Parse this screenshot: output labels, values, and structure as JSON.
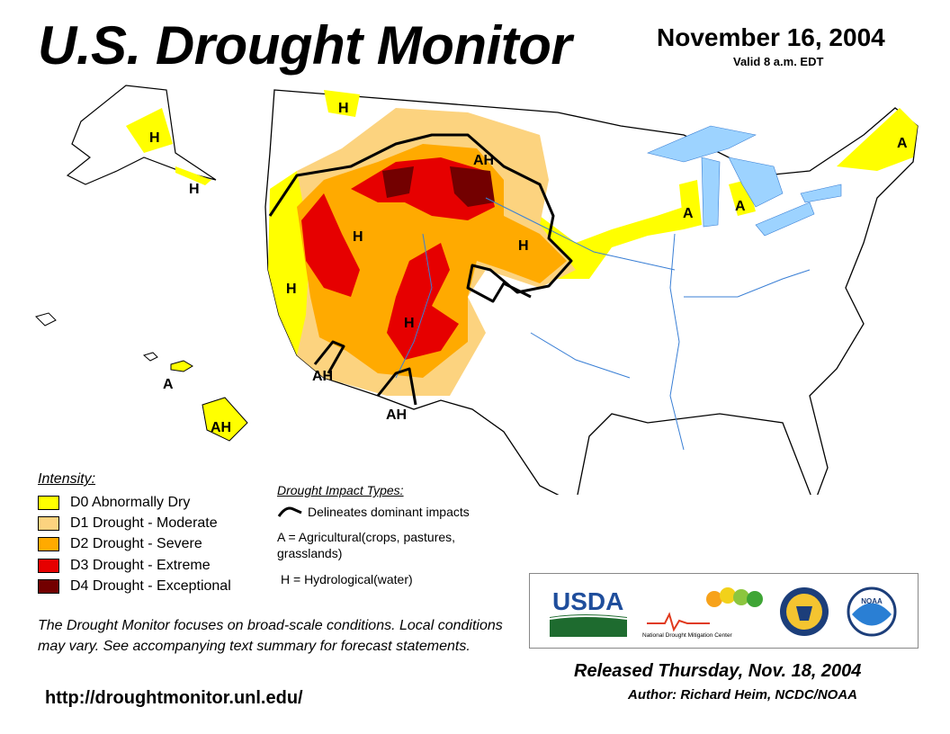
{
  "header": {
    "title": "U.S. Drought Monitor",
    "date": "November 16, 2004",
    "valid": "Valid 8 a.m. EDT"
  },
  "colors": {
    "d0": "#ffff00",
    "d1": "#fcd37f",
    "d2": "#ffaa00",
    "d3": "#e60000",
    "d4": "#730000",
    "water": "#9dd3ff",
    "river": "#3a7fd5",
    "boundary": "#000000"
  },
  "legend": {
    "title": "Intensity:",
    "items": [
      {
        "code": "D0",
        "label": "D0 Abnormally Dry",
        "color": "#ffff00"
      },
      {
        "code": "D1",
        "label": "D1 Drought - Moderate",
        "color": "#fcd37f"
      },
      {
        "code": "D2",
        "label": "D2 Drought - Severe",
        "color": "#ffaa00"
      },
      {
        "code": "D3",
        "label": "D3 Drought - Extreme",
        "color": "#e60000"
      },
      {
        "code": "D4",
        "label": "D4 Drought - Exceptional",
        "color": "#730000"
      }
    ]
  },
  "impact_types": {
    "title": "Drought Impact Types:",
    "delineates": "Delineates dominant impacts",
    "agricultural": "A = Agricultural(crops, pastures, grasslands)",
    "hydrological": "H = Hydrological(water)"
  },
  "map_labels": {
    "alaska_h1": "H",
    "alaska_h2": "H",
    "montana_h": "H",
    "wyoming_ah": "AH",
    "idaho_h": "H",
    "oregon_h": "H",
    "nebraska_h": "H",
    "utah_h": "H",
    "socal_ah": "AH",
    "arizona_ah": "AH",
    "hawaii_ah": "AH",
    "hawaii_a": "A",
    "michigan_a1": "A",
    "michigan_a2": "A",
    "maine_a": "A"
  },
  "notes": {
    "focus": "The Drought Monitor focuses on broad-scale conditions. Local conditions may vary. See accompanying text summary for forecast statements.",
    "url": "http://droughtmonitor.unl.edu/",
    "released": "Released Thursday, Nov. 18, 2004",
    "author": "Author: Richard Heim, NCDC/NOAA"
  },
  "logos": {
    "usda": "USDA",
    "ndmc": "National Drought Mitigation Center",
    "noaa": "NOAA"
  }
}
